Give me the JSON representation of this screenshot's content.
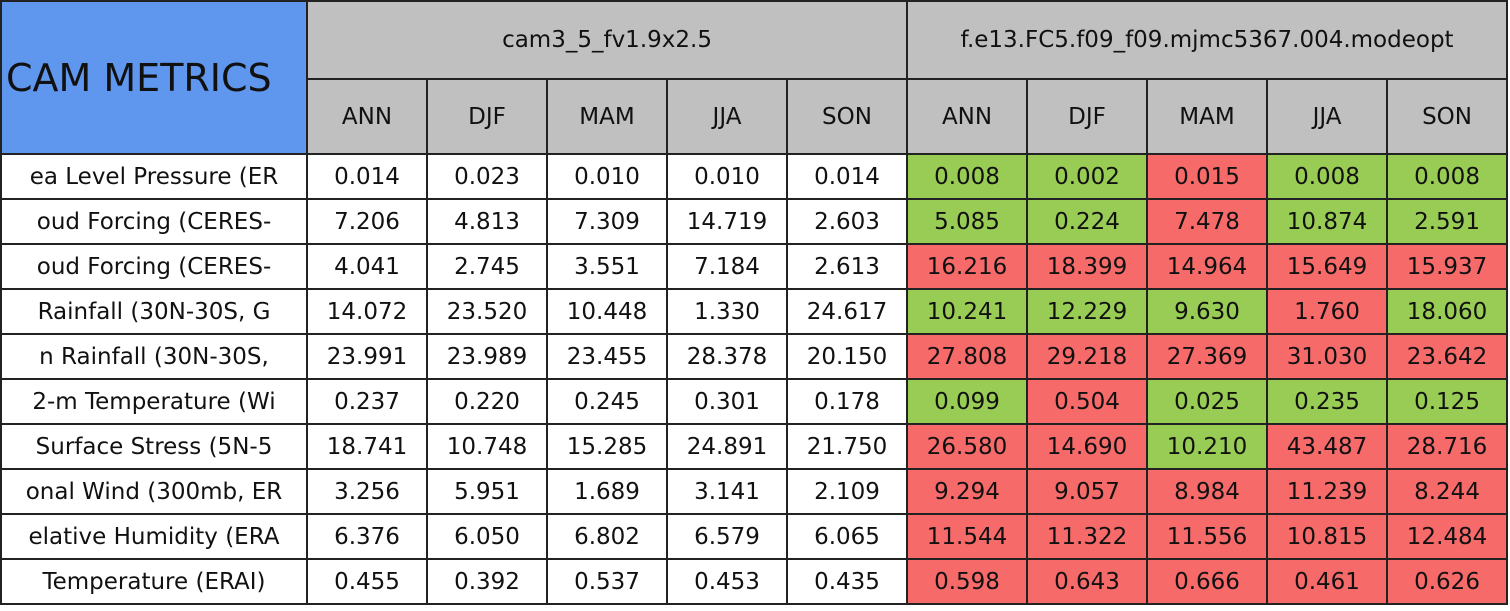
{
  "header": {
    "title": "CAM METRICS",
    "groups": [
      {
        "name": "cam3_5_fv1.9x2.5",
        "seasons": [
          "ANN",
          "DJF",
          "MAM",
          "JJA",
          "SON"
        ]
      },
      {
        "name": "f.e13.FC5.f09_f09.mjmc5367.004.modeopt",
        "seasons": [
          "ANN",
          "DJF",
          "MAM",
          "JJA",
          "SON"
        ]
      }
    ]
  },
  "colors": {
    "green": "#99cc55",
    "red": "#f76a6a"
  },
  "table": {
    "rows": [
      {
        "label": "ea Level Pressure (ER",
        "values": [
          "0.014",
          "0.023",
          "0.010",
          "0.010",
          "0.014",
          "0.008",
          "0.002",
          "0.015",
          "0.008",
          "0.008"
        ],
        "status": [
          "green",
          "green",
          "red",
          "green",
          "green"
        ]
      },
      {
        "label": "oud Forcing (CERES-",
        "values": [
          "7.206",
          "4.813",
          "7.309",
          "14.719",
          "2.603",
          "5.085",
          "0.224",
          "7.478",
          "10.874",
          "2.591"
        ],
        "status": [
          "green",
          "green",
          "red",
          "green",
          "green"
        ]
      },
      {
        "label": "oud Forcing (CERES-",
        "values": [
          "4.041",
          "2.745",
          "3.551",
          "7.184",
          "2.613",
          "16.216",
          "18.399",
          "14.964",
          "15.649",
          "15.937"
        ],
        "status": [
          "red",
          "red",
          "red",
          "red",
          "red"
        ]
      },
      {
        "label": "Rainfall (30N-30S, G",
        "values": [
          "14.072",
          "23.520",
          "10.448",
          "1.330",
          "24.617",
          "10.241",
          "12.229",
          "9.630",
          "1.760",
          "18.060"
        ],
        "status": [
          "green",
          "green",
          "green",
          "red",
          "green"
        ]
      },
      {
        "label": "n Rainfall (30N-30S,",
        "values": [
          "23.991",
          "23.989",
          "23.455",
          "28.378",
          "20.150",
          "27.808",
          "29.218",
          "27.369",
          "31.030",
          "23.642"
        ],
        "status": [
          "red",
          "red",
          "red",
          "red",
          "red"
        ]
      },
      {
        "label": "2-m Temperature (Wi",
        "values": [
          "0.237",
          "0.220",
          "0.245",
          "0.301",
          "0.178",
          "0.099",
          "0.504",
          "0.025",
          "0.235",
          "0.125"
        ],
        "status": [
          "green",
          "red",
          "green",
          "green",
          "green"
        ]
      },
      {
        "label": "Surface Stress (5N-5",
        "values": [
          "18.741",
          "10.748",
          "15.285",
          "24.891",
          "21.750",
          "26.580",
          "14.690",
          "10.210",
          "43.487",
          "28.716"
        ],
        "status": [
          "red",
          "red",
          "green",
          "red",
          "red"
        ]
      },
      {
        "label": "onal Wind (300mb, ER",
        "values": [
          "3.256",
          "5.951",
          "1.689",
          "3.141",
          "2.109",
          "9.294",
          "9.057",
          "8.984",
          "11.239",
          "8.244"
        ],
        "status": [
          "red",
          "red",
          "red",
          "red",
          "red"
        ]
      },
      {
        "label": "elative Humidity (ERA",
        "values": [
          "6.376",
          "6.050",
          "6.802",
          "6.579",
          "6.065",
          "11.544",
          "11.322",
          "11.556",
          "10.815",
          "12.484"
        ],
        "status": [
          "red",
          "red",
          "red",
          "red",
          "red"
        ]
      },
      {
        "label": "Temperature (ERAI)",
        "values": [
          "0.455",
          "0.392",
          "0.537",
          "0.453",
          "0.435",
          "0.598",
          "0.643",
          "0.666",
          "0.461",
          "0.626"
        ],
        "status": [
          "red",
          "red",
          "red",
          "red",
          "red"
        ]
      }
    ]
  }
}
